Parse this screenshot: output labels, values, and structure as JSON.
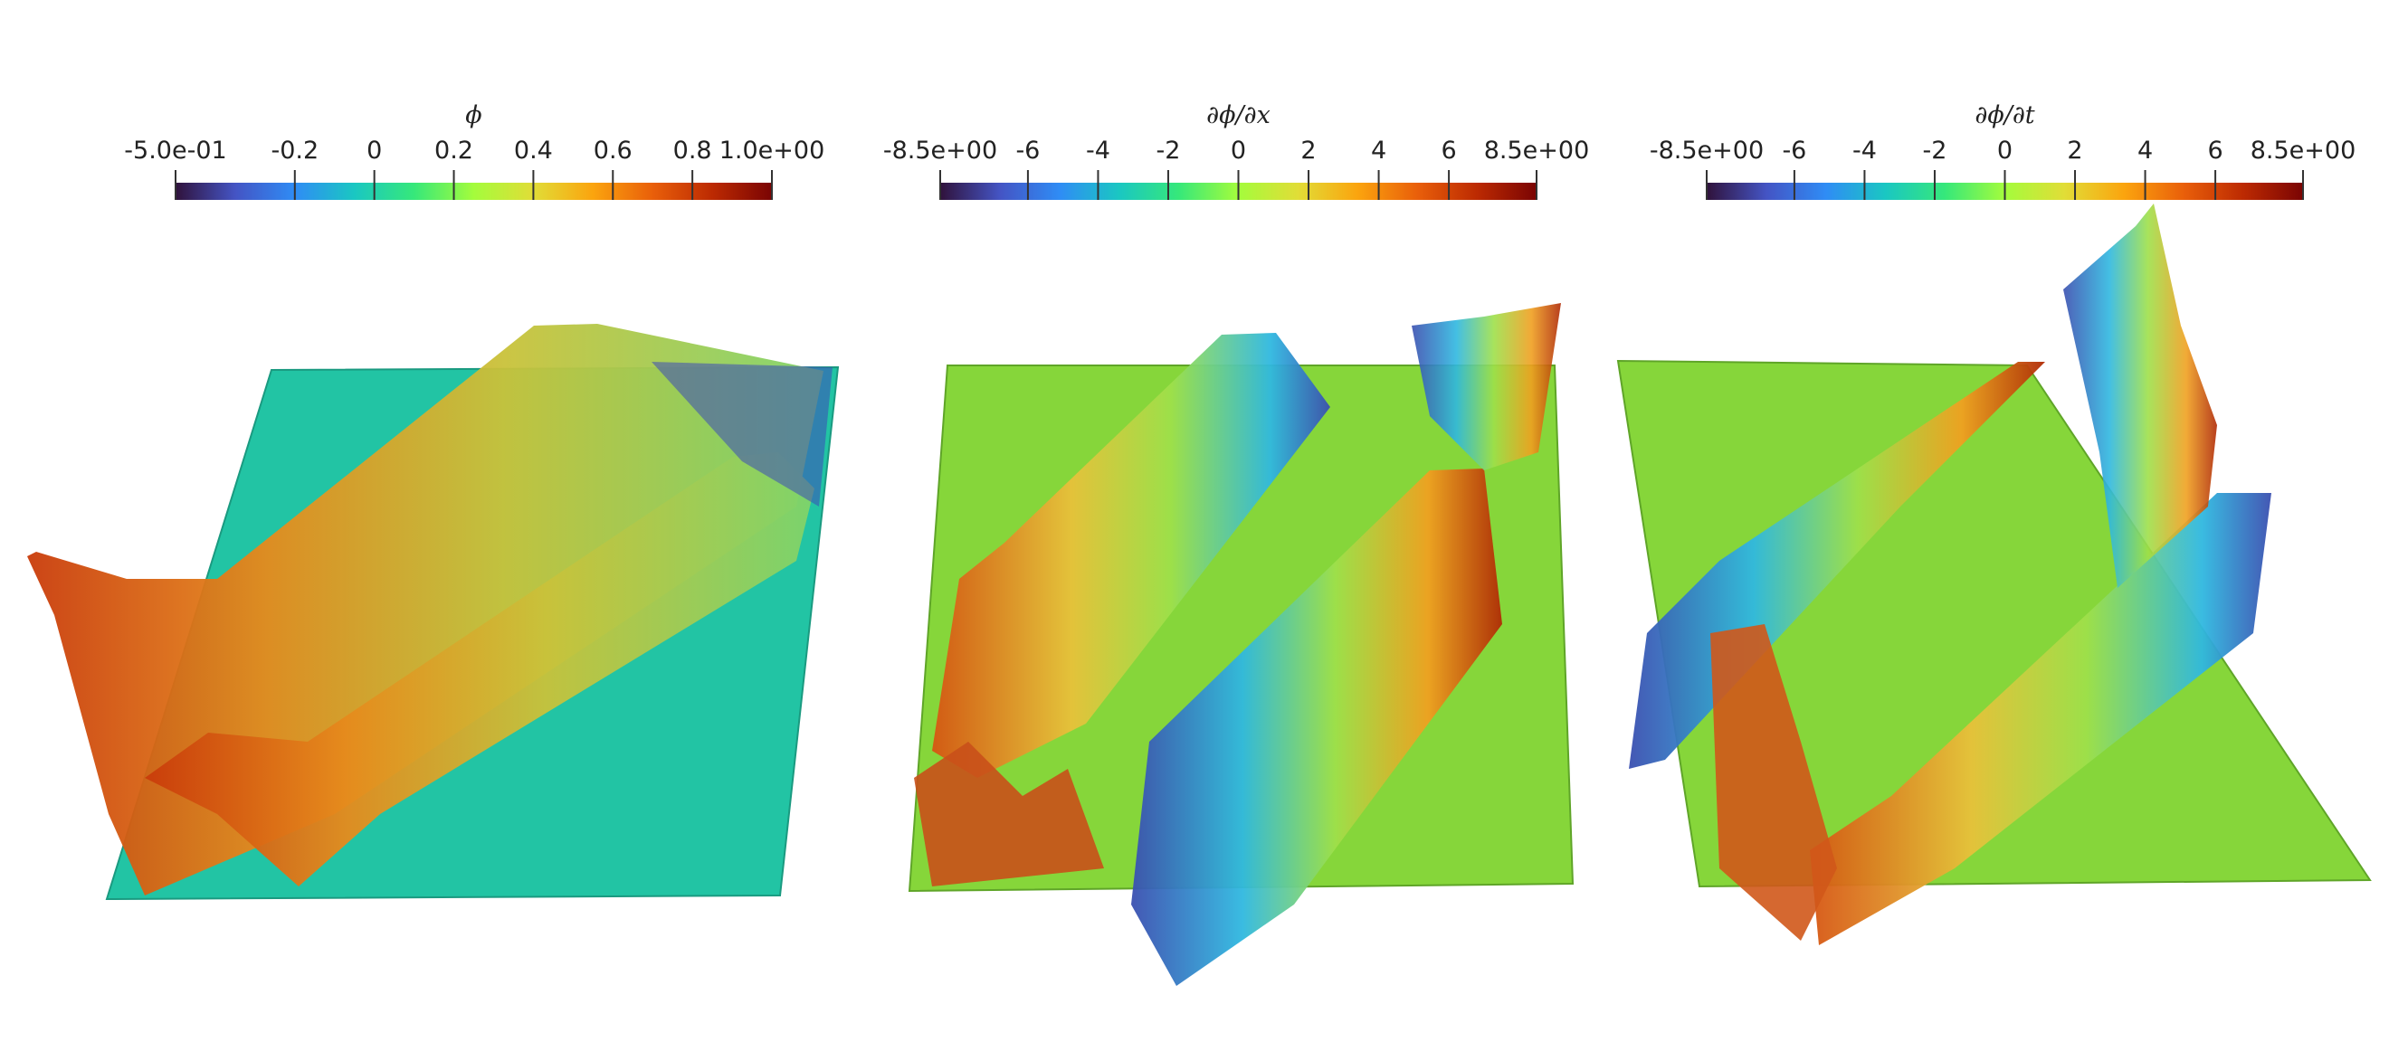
{
  "panels": [
    {
      "title": "ϕ",
      "range": [
        -0.5,
        1.0
      ],
      "ticks": [
        {
          "value": -0.5,
          "label": "-5.0e-01"
        },
        -0.2,
        0,
        0.2,
        0.4,
        0.6,
        0.8,
        {
          "value": 1.0,
          "label": "1.0e+00"
        }
      ]
    },
    {
      "title": "∂ϕ/∂x",
      "range": [
        -8.5,
        8.5
      ],
      "ticks": [
        {
          "value": -8.5,
          "label": "-8.5e+00"
        },
        -6,
        -4,
        -2,
        0,
        2,
        4,
        6,
        {
          "value": 8.5,
          "label": "8.5e+00"
        }
      ]
    },
    {
      "title": "∂ϕ/∂t",
      "range": [
        -8.5,
        8.5
      ],
      "ticks": [
        {
          "value": -8.5,
          "label": "-8.5e+00"
        },
        -6,
        -4,
        -2,
        0,
        2,
        4,
        6,
        {
          "value": 8.5,
          "label": "8.5e+00"
        }
      ]
    }
  ]
}
